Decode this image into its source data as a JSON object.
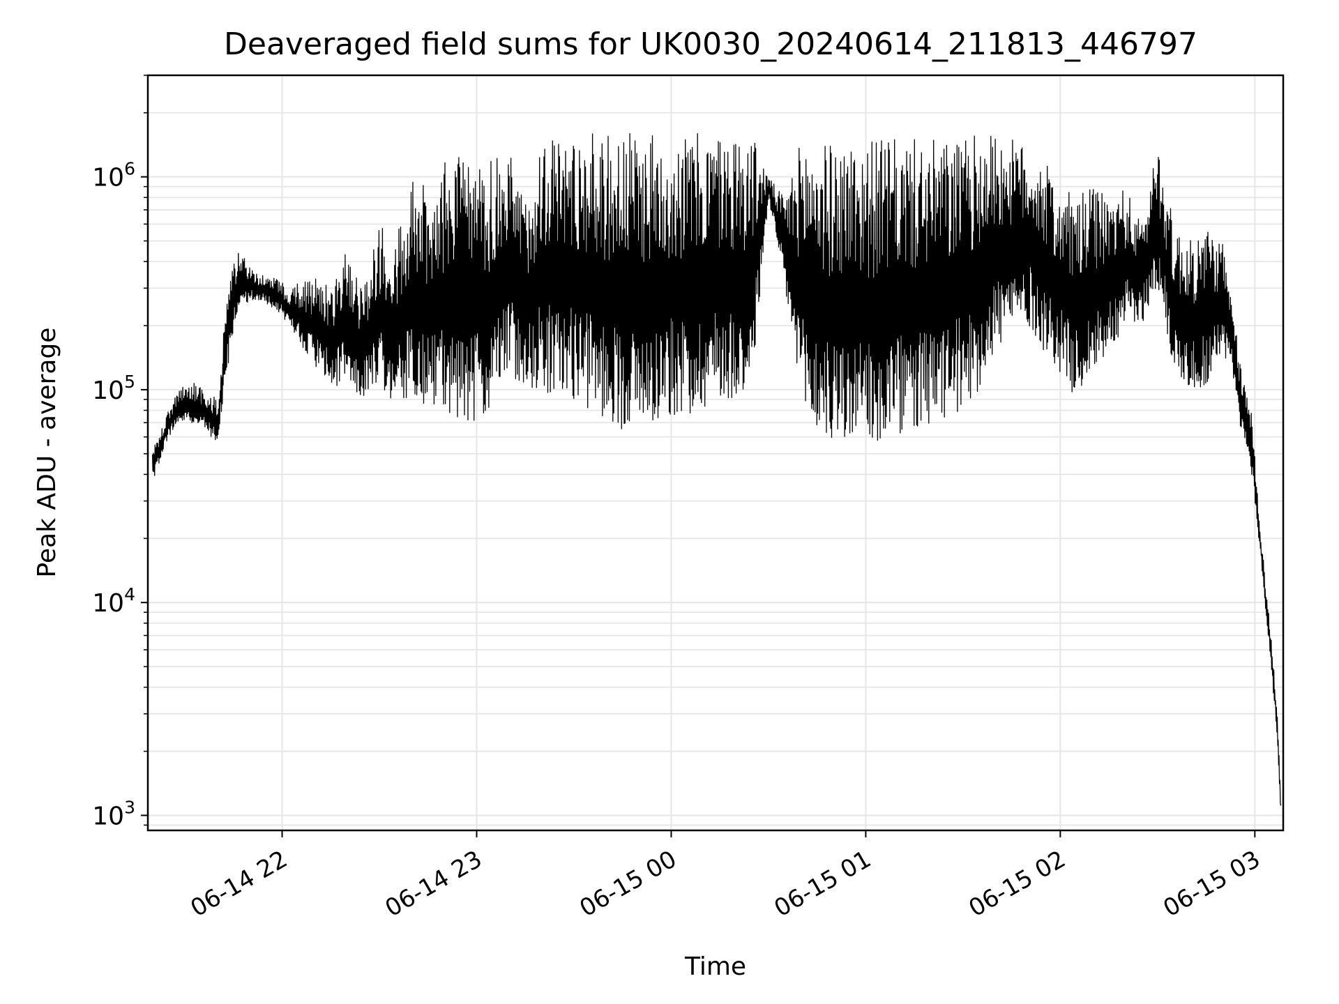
{
  "chart_data": {
    "type": "line",
    "title": "Deaveraged field sums for UK0030_20240614_211813_446797",
    "xlabel": "Time",
    "ylabel": "Peak ADU - average",
    "yscale": "log",
    "grid": true,
    "legend": "none",
    "line_color": "#000000",
    "grid_color": "#e6e6e6",
    "xlim": [
      "2024-06-14 21:18:35",
      "2024-06-15 03:08:45"
    ],
    "ylim": [
      850,
      3000000
    ],
    "x_ticks": [
      {
        "t": "2024-06-14 22:00",
        "label": "06-14 22"
      },
      {
        "t": "2024-06-14 23:00",
        "label": "06-14 23"
      },
      {
        "t": "2024-06-15 00:00",
        "label": "06-15 00"
      },
      {
        "t": "2024-06-15 01:00",
        "label": "06-15 01"
      },
      {
        "t": "2024-06-15 02:00",
        "label": "06-15 02"
      },
      {
        "t": "2024-06-15 03:00",
        "label": "06-15 03"
      }
    ],
    "y_ticks": [
      {
        "value": 1000,
        "base": "10",
        "exp": "3"
      },
      {
        "value": 10000,
        "base": "10",
        "exp": "4"
      },
      {
        "value": 100000,
        "base": "10",
        "exp": "5"
      },
      {
        "value": 1000000,
        "base": "10",
        "exp": "6"
      }
    ],
    "series": [
      {
        "x": [
          "2024-06-14 21:20",
          "2024-06-14 21:22",
          "2024-06-14 21:25",
          "2024-06-14 21:28",
          "2024-06-14 21:32",
          "2024-06-14 21:36",
          "2024-06-14 21:40",
          "2024-06-14 21:44",
          "2024-06-14 21:47",
          "2024-06-14 21:50",
          "2024-06-14 21:53",
          "2024-06-14 21:56",
          "2024-06-14 21:59",
          "2024-06-14 22:02",
          "2024-06-14 22:05",
          "2024-06-14 22:08",
          "2024-06-14 22:12",
          "2024-06-14 22:16",
          "2024-06-14 22:20",
          "2024-06-14 22:25",
          "2024-06-14 22:30",
          "2024-06-14 22:35",
          "2024-06-14 22:40",
          "2024-06-14 22:45",
          "2024-06-14 22:50",
          "2024-06-14 22:55",
          "2024-06-14 23:00",
          "2024-06-14 23:05",
          "2024-06-14 23:10",
          "2024-06-14 23:15",
          "2024-06-14 23:20",
          "2024-06-14 23:25",
          "2024-06-14 23:30",
          "2024-06-14 23:35",
          "2024-06-14 23:40",
          "2024-06-14 23:45",
          "2024-06-14 23:50",
          "2024-06-14 23:55",
          "2024-06-15 00:00",
          "2024-06-15 00:05",
          "2024-06-15 00:10",
          "2024-06-15 00:15",
          "2024-06-15 00:20",
          "2024-06-15 00:25",
          "2024-06-15 00:30",
          "2024-06-15 00:35",
          "2024-06-15 00:40",
          "2024-06-15 00:45",
          "2024-06-15 00:50",
          "2024-06-15 00:55",
          "2024-06-15 01:00",
          "2024-06-15 01:05",
          "2024-06-15 01:10",
          "2024-06-15 01:15",
          "2024-06-15 01:20",
          "2024-06-15 01:25",
          "2024-06-15 01:30",
          "2024-06-15 01:35",
          "2024-06-15 01:40",
          "2024-06-15 01:45",
          "2024-06-15 01:50",
          "2024-06-15 01:55",
          "2024-06-15 02:00",
          "2024-06-15 02:05",
          "2024-06-15 02:10",
          "2024-06-15 02:15",
          "2024-06-15 02:20",
          "2024-06-15 02:25",
          "2024-06-15 02:30",
          "2024-06-15 02:35",
          "2024-06-15 02:40",
          "2024-06-15 02:45",
          "2024-06-15 02:50",
          "2024-06-15 02:53",
          "2024-06-15 02:56",
          "2024-06-15 02:59",
          "2024-06-15 03:02",
          "2024-06-15 03:05",
          "2024-06-15 03:07",
          "2024-06-15 03:08"
        ],
        "upper": [
          55000,
          60000,
          80000,
          100000,
          110000,
          100000,
          90000,
          400000,
          450000,
          380000,
          350000,
          340000,
          330000,
          300000,
          320000,
          330000,
          340000,
          300000,
          500000,
          300000,
          600000,
          500000,
          1000000,
          900000,
          1200000,
          1300000,
          1100000,
          1200000,
          1300000,
          800000,
          1600000,
          1600000,
          1600000,
          1600000,
          1600000,
          1600000,
          1600000,
          1600000,
          1600000,
          1600000,
          1600000,
          1600000,
          1600000,
          1600000,
          1000000,
          800000,
          1500000,
          1500000,
          1400000,
          1500000,
          1500000,
          1500000,
          1500000,
          1500000,
          1500000,
          1500000,
          1500000,
          1600000,
          1600000,
          1500000,
          1400000,
          1200000,
          900000,
          800000,
          900000,
          800000,
          900000,
          600000,
          1500000,
          600000,
          500000,
          600000,
          500000,
          250000,
          120000,
          80000,
          20000,
          7000,
          3000,
          1200
        ],
        "lower": [
          35000,
          45000,
          60000,
          70000,
          70000,
          65000,
          55000,
          150000,
          250000,
          260000,
          260000,
          250000,
          230000,
          200000,
          170000,
          140000,
          120000,
          100000,
          110000,
          90000,
          110000,
          80000,
          90000,
          80000,
          80000,
          70000,
          70000,
          80000,
          120000,
          100000,
          100000,
          90000,
          90000,
          80000,
          70000,
          65000,
          65000,
          70000,
          75000,
          75000,
          80000,
          90000,
          90000,
          100000,
          800000,
          300000,
          80000,
          60000,
          55000,
          55000,
          50000,
          55000,
          60000,
          60000,
          65000,
          70000,
          80000,
          100000,
          150000,
          180000,
          200000,
          150000,
          120000,
          90000,
          120000,
          150000,
          200000,
          200000,
          300000,
          120000,
          100000,
          100000,
          150000,
          120000,
          60000,
          40000,
          15000,
          5000,
          2200,
          1000
        ]
      }
    ]
  }
}
